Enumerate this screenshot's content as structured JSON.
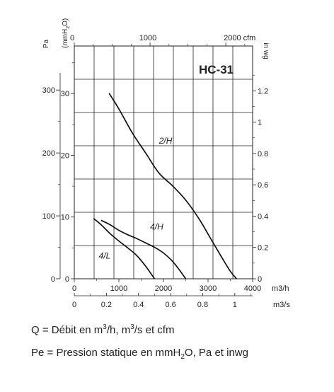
{
  "chart_data": {
    "type": "line",
    "title": "HC-31",
    "x": {
      "m3h": {
        "unit": "m3/h",
        "ticks": [
          "0",
          "1000",
          "2000",
          "3000",
          "4000"
        ],
        "range": [
          0,
          4000
        ]
      },
      "cfm": {
        "unit": "cfm",
        "ticks": [
          "0",
          "1000",
          "2000 cfm"
        ],
        "range": [
          0,
          2354
        ]
      },
      "m3s": {
        "unit": "m3/s",
        "ticks": [
          "0",
          "0.2",
          "0.4",
          "0.6",
          "0.8",
          "1"
        ],
        "range": [
          0,
          1.111
        ]
      }
    },
    "y": {
      "pa": {
        "unit": "Pa",
        "ticks": [
          "0",
          "100",
          "200",
          "300"
        ],
        "range": [
          0,
          370
        ]
      },
      "mmh2o": {
        "unit_main": "(mmH",
        "unit_sub": "2",
        "unit_end": "O)",
        "ticks": [
          "0",
          "10",
          "20",
          "30"
        ],
        "range": [
          0,
          37.7
        ]
      },
      "inwg": {
        "unit": "in wg",
        "ticks": [
          "0",
          "0.2",
          "0.4",
          "0.6",
          "0.8",
          "1",
          "1.2"
        ],
        "range": [
          0,
          1.486
        ]
      }
    },
    "grid": true,
    "series": [
      {
        "name": "2/H",
        "x": [
          780,
          1000,
          1300,
          1600,
          1900,
          2200,
          2500,
          2800,
          3050,
          3300,
          3500,
          3640
        ],
        "y": [
          295,
          270,
          232,
          200,
          168,
          148,
          125,
          95,
          65,
          35,
          12,
          0
        ]
      },
      {
        "name": "4/H",
        "x": [
          600,
          800,
          1000,
          1200,
          1400,
          1600,
          1800,
          2000,
          2200,
          2400,
          2500
        ],
        "y": [
          93,
          86,
          77,
          70,
          64,
          57,
          50,
          41,
          28,
          10,
          0
        ]
      },
      {
        "name": "4/L",
        "x": [
          430,
          600,
          800,
          1000,
          1200,
          1400,
          1600,
          1800
        ],
        "y": [
          96,
          86,
          72,
          60,
          49,
          37,
          20,
          0
        ]
      }
    ]
  },
  "captions": {
    "q_prefix": "Q = Débit en m",
    "q_sup": "3",
    "q_mid": "/h, m",
    "q_sup2": "3",
    "q_suffix": "/s et cfm",
    "pe_prefix": "Pe = Pression statique en mmH",
    "pe_sub": "2",
    "pe_suffix": "O, Pa et inwg"
  }
}
